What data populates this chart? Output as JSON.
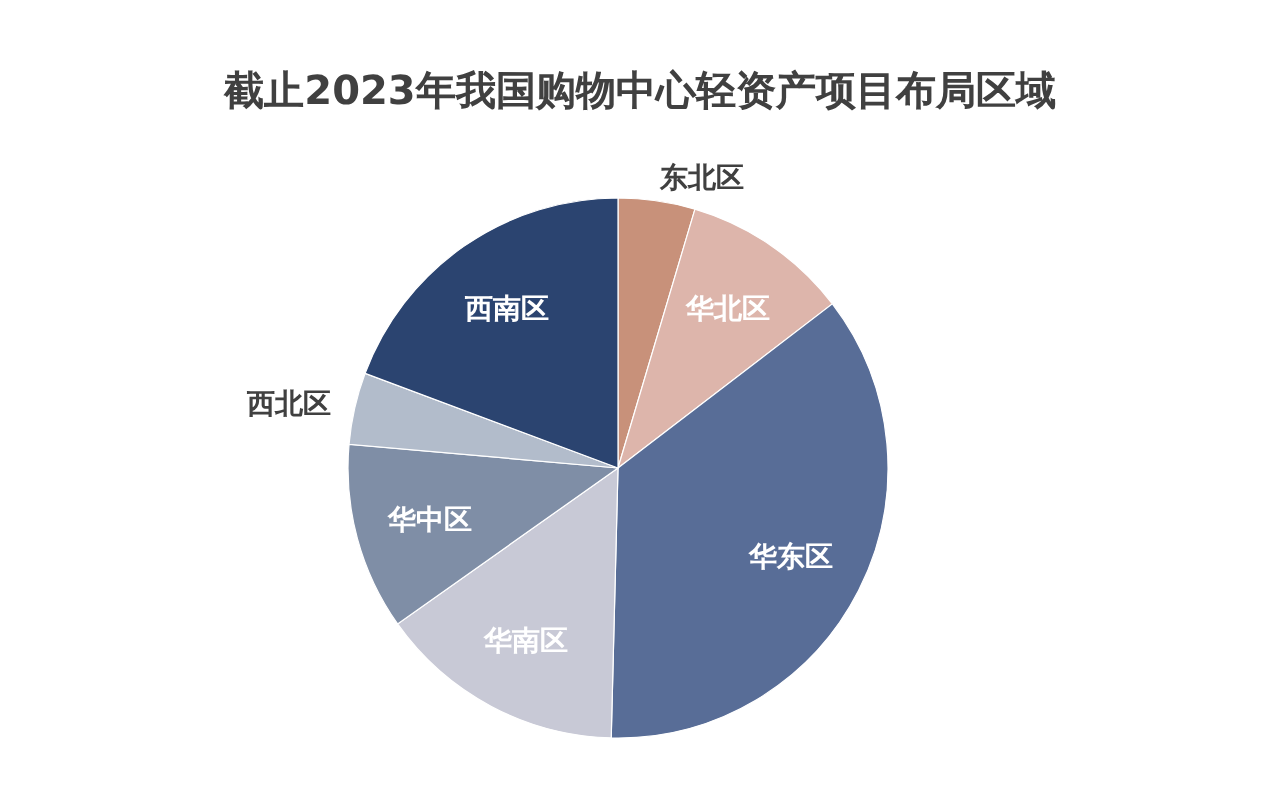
{
  "chart_data": {
    "type": "pie",
    "title": "截止2023年我国购物中心轻资产项目布局区域",
    "categories": [
      "东北区",
      "华北区",
      "华东区",
      "华南区",
      "华中区",
      "西北区",
      "西南区"
    ],
    "values": [
      4.6,
      10.0,
      35.8,
      14.8,
      11.2,
      4.3,
      19.3
    ],
    "colors": [
      "#c8917a",
      "#ddb5ab",
      "#586d97",
      "#c8c9d6",
      "#7f8ea6",
      "#b2bccb",
      "#2b4470"
    ],
    "legend": false
  }
}
